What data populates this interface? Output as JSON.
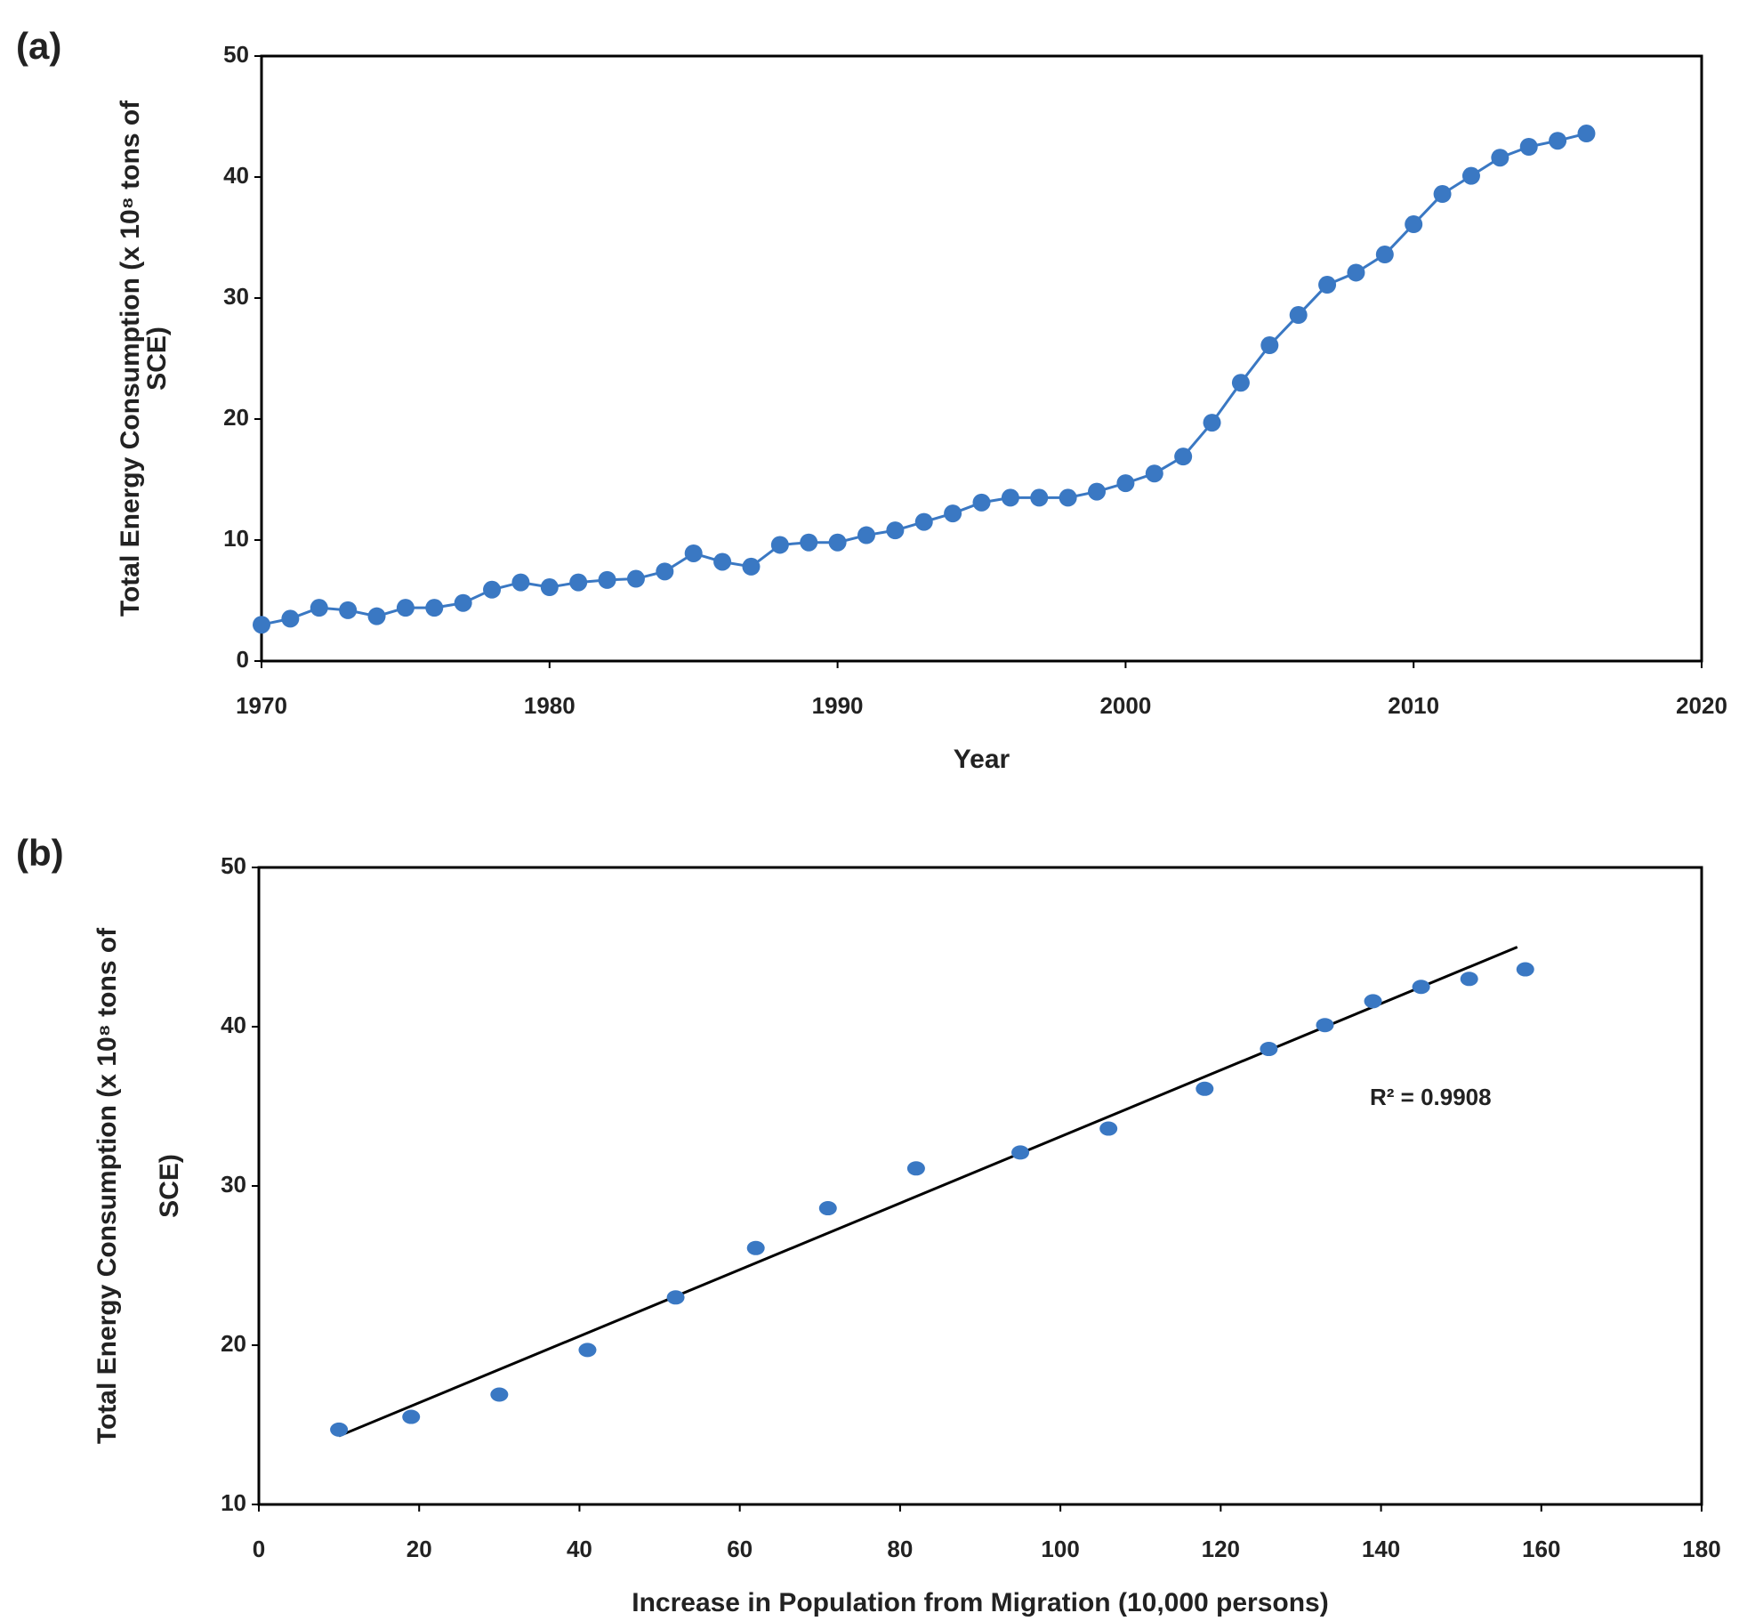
{
  "chart_data": [
    {
      "type": "line",
      "panel_label": "(a)",
      "xlabel": "Year",
      "ylabel": [
        "Total Energy Consumption (x 10⁸ tons of",
        "SCE)"
      ],
      "color": "#3a78c3",
      "x": [
        1970,
        1971,
        1972,
        1973,
        1974,
        1975,
        1976,
        1977,
        1978,
        1979,
        1980,
        1981,
        1982,
        1983,
        1984,
        1985,
        1986,
        1987,
        1988,
        1989,
        1990,
        1991,
        1992,
        1993,
        1994,
        1995,
        1996,
        1997,
        1998,
        1999,
        2000,
        2001,
        2002,
        2003,
        2004,
        2005,
        2006,
        2007,
        2008,
        2009,
        2010,
        2011,
        2012,
        2013,
        2014,
        2015,
        2016
      ],
      "values": [
        3.0,
        3.5,
        4.4,
        4.2,
        3.7,
        4.4,
        4.4,
        4.8,
        5.9,
        6.5,
        6.1,
        6.5,
        6.7,
        6.8,
        7.4,
        8.9,
        8.2,
        7.8,
        9.6,
        9.8,
        9.8,
        10.4,
        10.8,
        11.5,
        12.2,
        13.1,
        13.5,
        13.5,
        13.5,
        14.0,
        14.7,
        15.5,
        16.9,
        19.7,
        23.0,
        26.1,
        28.6,
        31.1,
        32.1,
        33.6,
        36.1,
        38.6,
        40.1,
        41.6,
        42.5,
        43.0,
        43.6
      ],
      "xlim": [
        1970,
        2020
      ],
      "xticks": [
        1970,
        1980,
        1990,
        2000,
        2010,
        2020
      ],
      "ylim": [
        0,
        50
      ],
      "yticks": [
        0,
        10,
        20,
        30,
        40,
        50
      ]
    },
    {
      "type": "scatter",
      "panel_label": "(b)",
      "xlabel": "Increase in Population from Migration (10,000 persons)",
      "ylabel": [
        "Total Energy Consumption (x 10⁸ tons of",
        "SCE)"
      ],
      "color": "#3a78c3",
      "x": [
        10,
        19,
        30,
        41,
        52,
        62,
        71,
        82,
        95,
        106,
        118,
        126,
        133,
        139,
        145,
        151,
        158
      ],
      "values": [
        14.7,
        15.5,
        16.9,
        19.7,
        23.0,
        26.1,
        28.6,
        31.1,
        32.1,
        33.6,
        36.1,
        38.6,
        40.1,
        41.6,
        42.5,
        43.0,
        43.6
      ],
      "trendline": {
        "x": [
          10,
          157
        ],
        "y": [
          14.3,
          45.0
        ],
        "color": "#000000"
      },
      "annotation": "R² = 0.9908",
      "xlim": [
        0,
        180
      ],
      "xticks": [
        0,
        20,
        40,
        60,
        80,
        100,
        120,
        140,
        160,
        180
      ],
      "ylim": [
        10,
        50
      ],
      "yticks": [
        10,
        20,
        30,
        40,
        50
      ]
    }
  ]
}
